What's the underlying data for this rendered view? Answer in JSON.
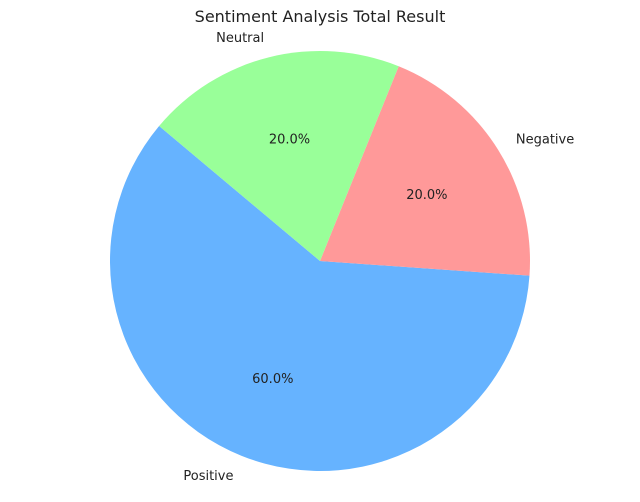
{
  "chart_data": {
    "type": "pie",
    "title": "Sentiment Analysis Total Result",
    "slices": [
      {
        "label": "Positive",
        "value": 60.0,
        "pct_label": "60.0%",
        "color": "#66b3ff"
      },
      {
        "label": "Negative",
        "value": 20.0,
        "pct_label": "20.0%",
        "color": "#ff9999"
      },
      {
        "label": "Neutral",
        "value": 20.0,
        "pct_label": "20.0%",
        "color": "#99ff99"
      }
    ],
    "start_angle_deg": 140,
    "direction": "counterclockwise"
  }
}
